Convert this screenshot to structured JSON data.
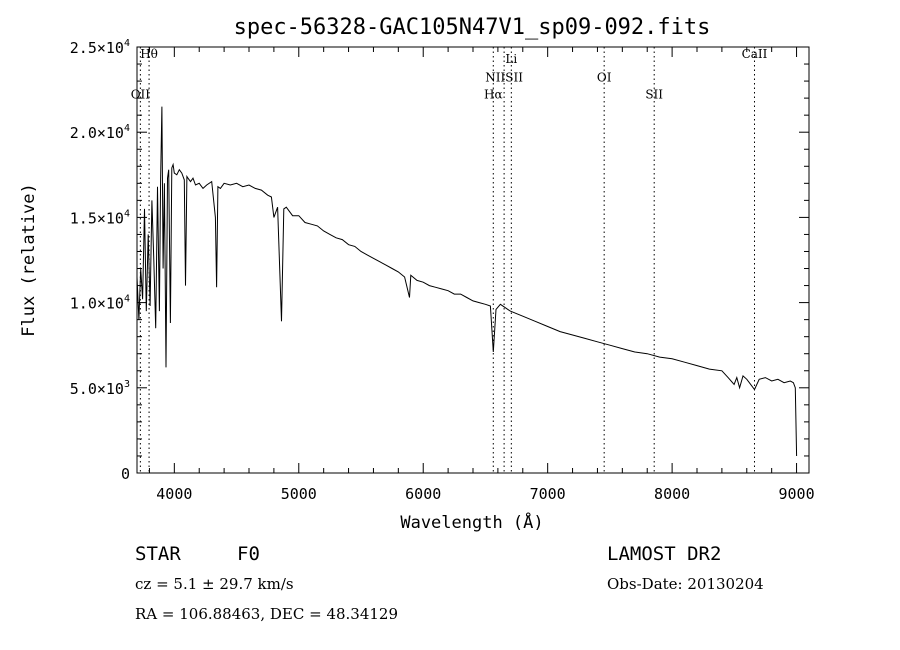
{
  "chart_data": {
    "type": "line",
    "title": "spec-56328-GAC105N47V1_sp09-092.fits",
    "xlabel": "Wavelength (Å)",
    "ylabel": "Flux (relative)",
    "xlim": [
      3700,
      9100
    ],
    "ylim": [
      0,
      25000
    ],
    "x_ticks": [
      4000,
      5000,
      6000,
      7000,
      8000,
      9000
    ],
    "x_tick_labels": [
      "4000",
      "5000",
      "6000",
      "7000",
      "8000",
      "9000"
    ],
    "y_ticks": [
      0,
      5000,
      10000,
      15000,
      20000,
      25000
    ],
    "y_tick_labels": [
      {
        "mant": "0",
        "exp": ""
      },
      {
        "mant": "5.0×10",
        "exp": "3"
      },
      {
        "mant": "1.0×10",
        "exp": "4"
      },
      {
        "mant": "1.5×10",
        "exp": "4"
      },
      {
        "mant": "2.0×10",
        "exp": "4"
      },
      {
        "mant": "2.5×10",
        "exp": "4"
      }
    ],
    "grid": false,
    "series": [
      {
        "x": [
          3700,
          3715,
          3730,
          3745,
          3760,
          3775,
          3790,
          3805,
          3820,
          3835,
          3850,
          3865,
          3880,
          3890,
          3900,
          3910,
          3920,
          3933,
          3945,
          3955,
          3968,
          3980,
          3990,
          4000,
          4020,
          4040,
          4060,
          4080,
          4090,
          4101,
          4110,
          4130,
          4150,
          4170,
          4200,
          4230,
          4260,
          4300,
          4330,
          4340,
          4350,
          4370,
          4400,
          4450,
          4500,
          4550,
          4600,
          4650,
          4700,
          4750,
          4780,
          4800,
          4830,
          4861,
          4880,
          4900,
          4950,
          5000,
          5050,
          5100,
          5150,
          5200,
          5250,
          5300,
          5350,
          5400,
          5450,
          5500,
          5550,
          5600,
          5650,
          5700,
          5750,
          5800,
          5850,
          5890,
          5900,
          5950,
          6000,
          6050,
          6100,
          6150,
          6200,
          6250,
          6300,
          6350,
          6400,
          6450,
          6500,
          6540,
          6563,
          6585,
          6620,
          6700,
          6800,
          6900,
          7000,
          7100,
          7200,
          7300,
          7400,
          7500,
          7600,
          7700,
          7800,
          7900,
          8000,
          8100,
          8200,
          8300,
          8400,
          8450,
          8498,
          8520,
          8542,
          8570,
          8600,
          8662,
          8700,
          8750,
          8800,
          8850,
          8900,
          8950,
          8975,
          8990,
          9000
        ],
        "y": [
          11500,
          9000,
          12000,
          10200,
          15500,
          9500,
          14000,
          9800,
          16000,
          12500,
          8500,
          16800,
          9500,
          17200,
          21500,
          12000,
          17000,
          6200,
          17300,
          17800,
          8800,
          17900,
          18100,
          17600,
          17500,
          17800,
          17600,
          17200,
          11000,
          17400,
          17300,
          17100,
          17300,
          16900,
          17000,
          16700,
          16900,
          17100,
          15000,
          10900,
          16800,
          16700,
          17000,
          16900,
          17000,
          16800,
          16900,
          16700,
          16600,
          16300,
          16200,
          15000,
          15600,
          8900,
          15500,
          15600,
          15100,
          15100,
          14700,
          14600,
          14500,
          14200,
          14000,
          13800,
          13700,
          13400,
          13300,
          13000,
          12800,
          12600,
          12400,
          12200,
          12000,
          11800,
          11500,
          10300,
          11600,
          11300,
          11200,
          11000,
          10900,
          10800,
          10700,
          10500,
          10500,
          10300,
          10100,
          10000,
          9900,
          9800,
          7100,
          9600,
          9900,
          9500,
          9200,
          8900,
          8600,
          8300,
          8100,
          7900,
          7700,
          7500,
          7300,
          7100,
          7000,
          6800,
          6700,
          6500,
          6300,
          6100,
          6000,
          5600,
          5200,
          5600,
          5000,
          5700,
          5500,
          4900,
          5500,
          5600,
          5400,
          5500,
          5300,
          5400,
          5300,
          5000,
          1000
        ]
      }
    ],
    "line_markers": [
      {
        "label": "Hθ",
        "x": 3797,
        "label_y": 24600
      },
      {
        "label": "OII",
        "x": 3727,
        "label_y": 22200
      },
      {
        "label": "Li",
        "x": 6708,
        "label_y": 24300
      },
      {
        "label": "NIISII",
        "x": 6650,
        "label_y": 23200
      },
      {
        "label": "Hα",
        "x": 6563,
        "label_y": 22200
      },
      {
        "label": "OI",
        "x": 7454,
        "label_y": 23200
      },
      {
        "label": "SII",
        "x": 7856,
        "label_y": 22200
      },
      {
        "label": "CaII",
        "x": 8662,
        "label_y": 24600
      }
    ]
  },
  "info": {
    "object_class": "STAR",
    "subclass": "F0",
    "redshift": "cz = 5.1 ± 29.7 km/s",
    "coords": "RA = 106.88463, DEC =  48.34129",
    "survey": "LAMOST DR2",
    "obs_date": "Obs-Date: 20130204"
  }
}
